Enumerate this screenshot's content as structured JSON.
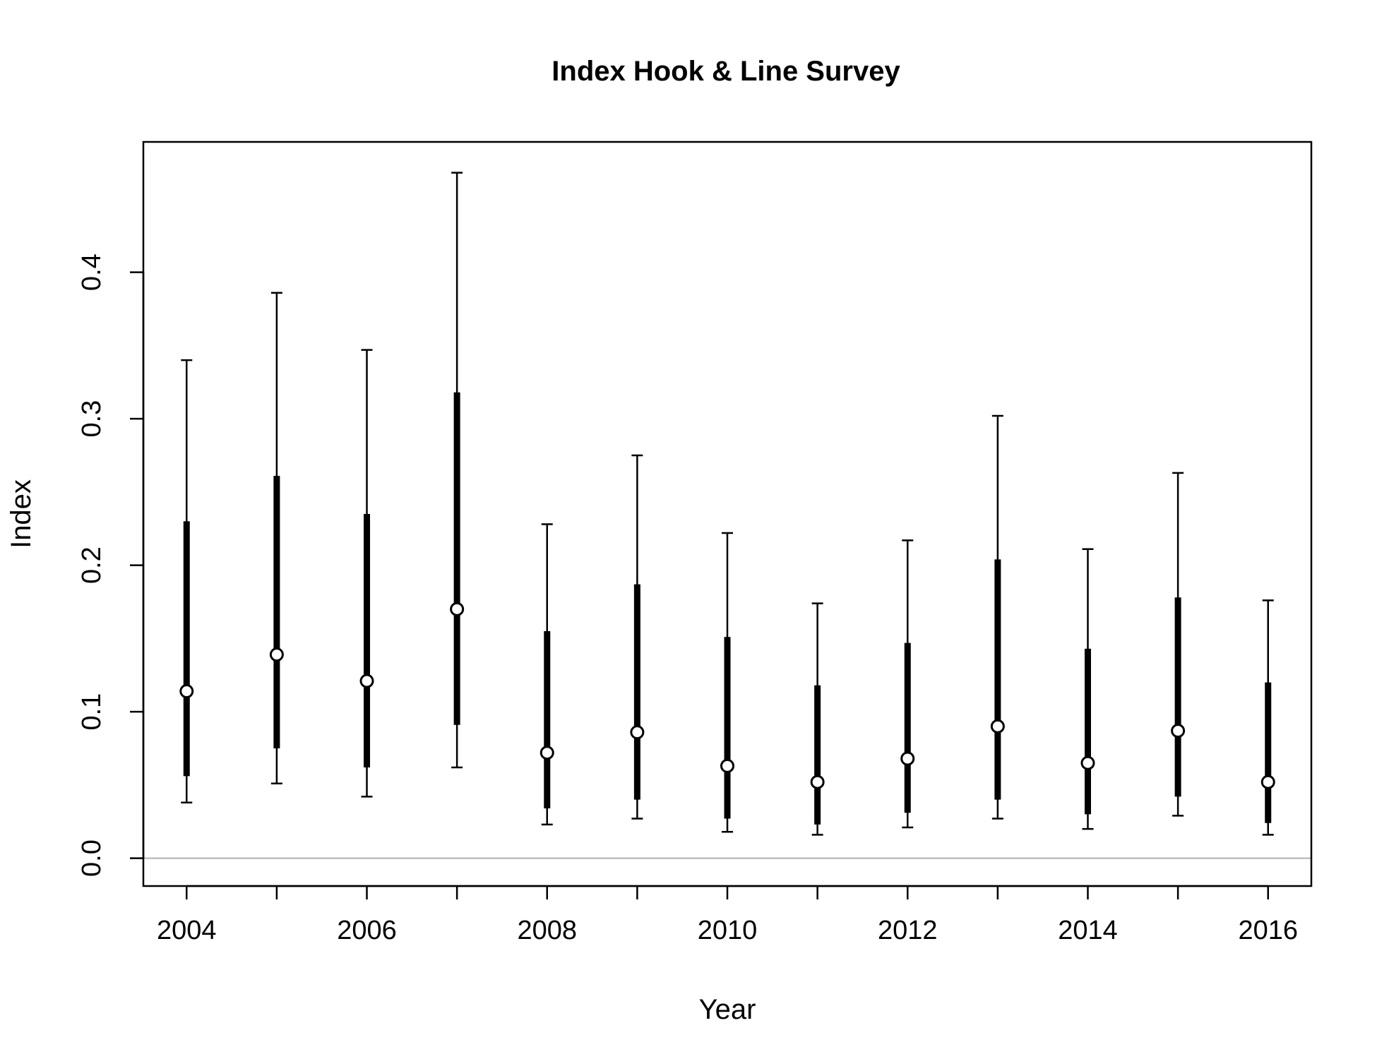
{
  "chart_data": {
    "type": "errorbar",
    "title": "Index Hook & Line Survey",
    "xlabel": "Year",
    "ylabel": "Index",
    "xlim": [
      2003.52,
      2016.48
    ],
    "ylim": [
      -0.019,
      0.489
    ],
    "x_ticks": [
      2004,
      2006,
      2008,
      2010,
      2012,
      2014,
      2016
    ],
    "y_ticks": [
      0.0,
      0.1,
      0.2,
      0.3,
      0.4
    ],
    "y_tick_labels": [
      "0.0",
      "0.1",
      "0.2",
      "0.3",
      "0.4"
    ],
    "reference_line": 0,
    "reference_line_color": "#bebebe",
    "point_fill": "#ffffff",
    "bar_color": "#000000",
    "points": [
      {
        "year": 2004,
        "value": 0.114,
        "inner_lo": 0.056,
        "inner_hi": 0.23,
        "outer_lo": 0.038,
        "outer_hi": 0.34
      },
      {
        "year": 2005,
        "value": 0.139,
        "inner_lo": 0.075,
        "inner_hi": 0.261,
        "outer_lo": 0.051,
        "outer_hi": 0.386
      },
      {
        "year": 2006,
        "value": 0.121,
        "inner_lo": 0.062,
        "inner_hi": 0.235,
        "outer_lo": 0.042,
        "outer_hi": 0.347
      },
      {
        "year": 2007,
        "value": 0.17,
        "inner_lo": 0.091,
        "inner_hi": 0.318,
        "outer_lo": 0.062,
        "outer_hi": 0.468
      },
      {
        "year": 2008,
        "value": 0.072,
        "inner_lo": 0.034,
        "inner_hi": 0.155,
        "outer_lo": 0.023,
        "outer_hi": 0.228
      },
      {
        "year": 2009,
        "value": 0.086,
        "inner_lo": 0.04,
        "inner_hi": 0.187,
        "outer_lo": 0.027,
        "outer_hi": 0.275
      },
      {
        "year": 2010,
        "value": 0.063,
        "inner_lo": 0.027,
        "inner_hi": 0.151,
        "outer_lo": 0.018,
        "outer_hi": 0.222
      },
      {
        "year": 2011,
        "value": 0.052,
        "inner_lo": 0.023,
        "inner_hi": 0.118,
        "outer_lo": 0.016,
        "outer_hi": 0.174
      },
      {
        "year": 2012,
        "value": 0.068,
        "inner_lo": 0.031,
        "inner_hi": 0.147,
        "outer_lo": 0.021,
        "outer_hi": 0.217
      },
      {
        "year": 2013,
        "value": 0.09,
        "inner_lo": 0.04,
        "inner_hi": 0.204,
        "outer_lo": 0.027,
        "outer_hi": 0.302
      },
      {
        "year": 2014,
        "value": 0.065,
        "inner_lo": 0.03,
        "inner_hi": 0.143,
        "outer_lo": 0.02,
        "outer_hi": 0.211
      },
      {
        "year": 2015,
        "value": 0.087,
        "inner_lo": 0.042,
        "inner_hi": 0.178,
        "outer_lo": 0.029,
        "outer_hi": 0.263
      },
      {
        "year": 2016,
        "value": 0.052,
        "inner_lo": 0.024,
        "inner_hi": 0.12,
        "outer_lo": 0.016,
        "outer_hi": 0.176
      }
    ]
  }
}
